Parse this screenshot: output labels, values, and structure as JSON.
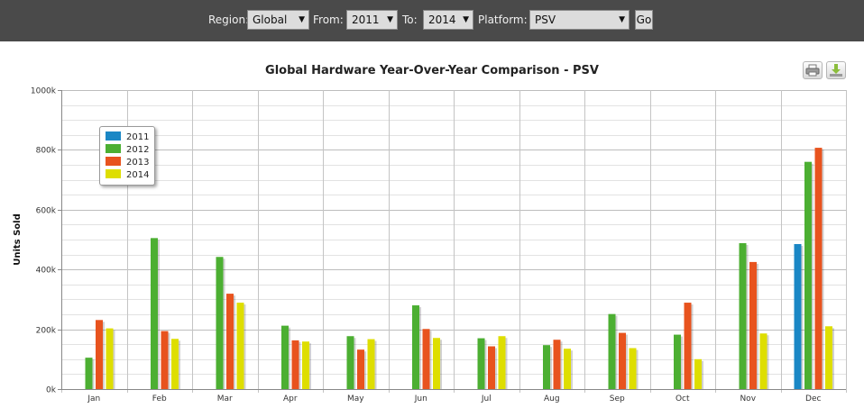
{
  "toolbar": {
    "region_label": "Region:",
    "region_value": "Global",
    "from_label": "From:",
    "from_value": "2011",
    "to_label": "To:",
    "to_value": "2014",
    "platform_label": "Platform:",
    "platform_value": "PSV",
    "go_label": "Go"
  },
  "chart_data": {
    "type": "bar",
    "title": "Global Hardware Year-Over-Year Comparison - PSV",
    "ylabel": "Units Sold",
    "xlabel": "",
    "ylim": [
      0,
      1000000
    ],
    "yticks": [
      "0k",
      "200k",
      "400k",
      "600k",
      "800k",
      "1000k"
    ],
    "grid": true,
    "legend_position": "top-left",
    "categories": [
      "Jan",
      "Feb",
      "Mar",
      "Apr",
      "May",
      "Jun",
      "Jul",
      "Aug",
      "Sep",
      "Oct",
      "Nov",
      "Dec"
    ],
    "series": [
      {
        "name": "2011",
        "color": "#1a87c5",
        "values": [
          null,
          null,
          null,
          null,
          null,
          null,
          null,
          null,
          null,
          null,
          null,
          485000
        ]
      },
      {
        "name": "2012",
        "color": "#4caf32",
        "values": [
          105000,
          505000,
          442000,
          212000,
          177000,
          280000,
          170000,
          147000,
          251000,
          182000,
          488000,
          760000
        ]
      },
      {
        "name": "2013",
        "color": "#e8531e",
        "values": [
          231000,
          194000,
          319000,
          163000,
          132000,
          201000,
          143000,
          165000,
          188000,
          289000,
          425000,
          807000
        ]
      },
      {
        "name": "2014",
        "color": "#dede00",
        "values": [
          203000,
          168000,
          289000,
          159000,
          167000,
          171000,
          177000,
          135000,
          137000,
          100000,
          186000,
          210000
        ]
      }
    ]
  }
}
